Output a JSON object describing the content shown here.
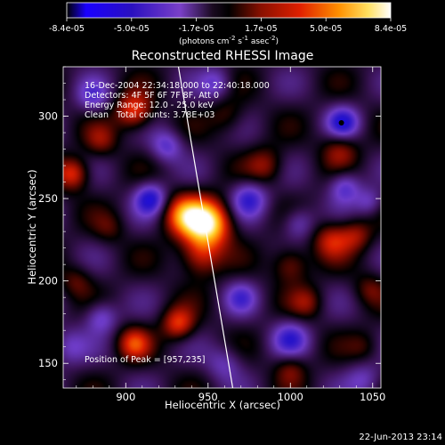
{
  "chart_data": {
    "type": "heatmap",
    "title": "Reconstructed RHESSI Image",
    "xlabel": "Heliocentric X (arcsec)",
    "ylabel": "Heliocentric Y (arcsec)",
    "xlim": [
      862,
      1055
    ],
    "ylim": [
      135,
      330
    ],
    "xticks": [
      900,
      950,
      1000,
      1050
    ],
    "yticks": [
      150,
      200,
      250,
      300
    ],
    "colorbar": {
      "ticks": [
        "-8.4e-05",
        "-5.0e-05",
        "-1.7e-05",
        "1.7e-05",
        "5.0e-05",
        "8.4e-05"
      ],
      "label_main": "(photons cm",
      "label_exp1": "-2",
      "label_mid": " s",
      "label_exp2": "-1",
      "label_end": " asec",
      "label_exp3": "-2",
      "label_close": ")",
      "range": [
        -8.4e-05,
        8.4e-05
      ]
    },
    "annotations": [
      "16-Dec-2004 22:34:18.000 to 22:40:18.000",
      "Detectors: 4F 5F 6F 7F 8F, Att 0",
      "Energy Range: 12.0 - 25.0 keV",
      "Clean   Total counts: 3.78E+03"
    ],
    "peak_label": "Position of Peak = [957,235]",
    "peak": [
      957,
      235
    ],
    "limb_line": [
      [
        932,
        330
      ],
      [
        965,
        135
      ]
    ],
    "dot": [
      1031,
      296
    ],
    "sources": [
      {
        "x": 950,
        "y": 235,
        "v": 1.0,
        "s": 10
      },
      {
        "x": 935,
        "y": 240,
        "v": 0.6,
        "s": 9
      },
      {
        "x": 945,
        "y": 215,
        "v": 0.5,
        "s": 9
      },
      {
        "x": 1025,
        "y": 225,
        "v": 0.45,
        "s": 8
      },
      {
        "x": 1040,
        "y": 228,
        "v": 0.35,
        "s": 7
      },
      {
        "x": 868,
        "y": 265,
        "v": 0.55,
        "s": 7
      },
      {
        "x": 905,
        "y": 303,
        "v": 0.6,
        "s": 8
      },
      {
        "x": 885,
        "y": 285,
        "v": 0.3,
        "s": 7
      },
      {
        "x": 985,
        "y": 270,
        "v": 0.35,
        "s": 8
      },
      {
        "x": 1030,
        "y": 280,
        "v": 0.35,
        "s": 8
      },
      {
        "x": 1000,
        "y": 210,
        "v": 0.4,
        "s": 8
      },
      {
        "x": 905,
        "y": 162,
        "v": 0.5,
        "s": 7
      },
      {
        "x": 932,
        "y": 174,
        "v": 0.55,
        "s": 7
      },
      {
        "x": 1010,
        "y": 187,
        "v": 0.3,
        "s": 7
      },
      {
        "x": 962,
        "y": 300,
        "v": 0.25,
        "s": 8
      },
      {
        "x": 1000,
        "y": 147,
        "v": 0.3,
        "s": 7
      },
      {
        "x": 870,
        "y": 200,
        "v": 0.25,
        "s": 7
      },
      {
        "x": 890,
        "y": 232,
        "v": 0.2,
        "s": 7
      },
      {
        "x": 1048,
        "y": 195,
        "v": 0.25,
        "s": 7
      },
      {
        "x": 1045,
        "y": 160,
        "v": 0.2,
        "s": 7
      },
      {
        "x": 915,
        "y": 250,
        "v": -0.6,
        "s": 7
      },
      {
        "x": 975,
        "y": 250,
        "v": -0.5,
        "s": 8
      },
      {
        "x": 1032,
        "y": 296,
        "v": -0.55,
        "s": 7
      },
      {
        "x": 1033,
        "y": 257,
        "v": -0.45,
        "s": 7
      },
      {
        "x": 865,
        "y": 160,
        "v": -0.3,
        "s": 8
      },
      {
        "x": 925,
        "y": 282,
        "v": -0.4,
        "s": 7
      },
      {
        "x": 1005,
        "y": 235,
        "v": -0.35,
        "s": 7
      },
      {
        "x": 1000,
        "y": 165,
        "v": -0.45,
        "s": 8
      },
      {
        "x": 885,
        "y": 178,
        "v": -0.4,
        "s": 7
      },
      {
        "x": 970,
        "y": 190,
        "v": -0.35,
        "s": 7
      },
      {
        "x": 1045,
        "y": 140,
        "v": -0.3,
        "s": 8
      },
      {
        "x": 960,
        "y": 150,
        "v": -0.3,
        "s": 8
      },
      {
        "x": 1048,
        "y": 248,
        "v": -0.3,
        "s": 6
      },
      {
        "x": 880,
        "y": 312,
        "v": -0.35,
        "s": 7
      },
      {
        "x": 955,
        "y": 320,
        "v": -0.35,
        "s": 7
      }
    ]
  },
  "footer": {
    "timestamp": "22-Jun-2013 23:14"
  }
}
